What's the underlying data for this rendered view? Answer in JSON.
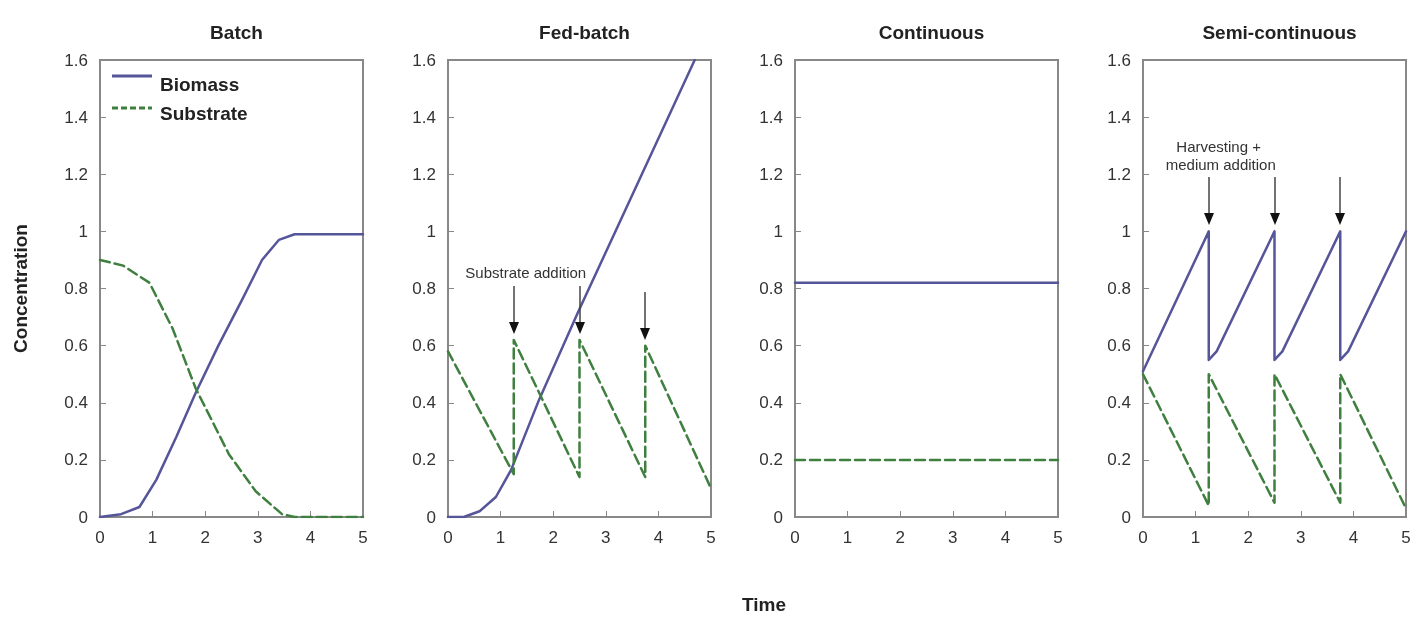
{
  "chart_data": [
    {
      "type": "line",
      "title": "Batch",
      "ylabel": "Concentration",
      "xlim": [
        0,
        5
      ],
      "ylim": [
        0,
        1.6
      ],
      "xticks": [
        0,
        1,
        2,
        3,
        4,
        5
      ],
      "yticks": [
        0,
        0.2,
        0.4,
        0.6,
        0.8,
        1,
        1.2,
        1.4,
        1.6
      ],
      "grid": false,
      "legend": "top left",
      "marker": "none",
      "series": [
        {
          "name": "Biomass",
          "color": "#55559a",
          "line_style": "solid",
          "x": [
            0,
            0.4,
            0.75,
            1.07,
            1.45,
            1.82,
            2.25,
            2.7,
            3.08,
            3.4,
            3.7,
            5
          ],
          "values": [
            0,
            0.01,
            0.035,
            0.13,
            0.28,
            0.435,
            0.6,
            0.76,
            0.9,
            0.97,
            0.99,
            0.99
          ]
        },
        {
          "name": "Substrate",
          "color": "#3f7f3f",
          "line_style": "dashed",
          "x": [
            0,
            0.44,
            0.94,
            1.38,
            1.82,
            2.45,
            2.96,
            3.46,
            3.7,
            5
          ],
          "values": [
            0.9,
            0.88,
            0.82,
            0.66,
            0.45,
            0.22,
            0.09,
            0.01,
            0,
            0
          ]
        }
      ]
    },
    {
      "type": "line",
      "title": "Fed-batch",
      "xlabel": "Time",
      "xlim": [
        0,
        5
      ],
      "ylim": [
        0,
        1.6
      ],
      "xticks": [
        0,
        1,
        2,
        3,
        4,
        5
      ],
      "yticks": [
        0,
        0.2,
        0.4,
        0.6,
        0.8,
        1,
        1.2,
        1.4,
        1.6
      ],
      "grid": false,
      "legend": false,
      "marker": "none",
      "annotations": [
        "Substrate addition"
      ],
      "series": [
        {
          "color": "#55559a",
          "line_style": "solid",
          "x": [
            0,
            0.3,
            0.6,
            0.91,
            1.2,
            1.73,
            2.48,
            4.69
          ],
          "values": [
            0,
            0,
            0.02,
            0.07,
            0.165,
            0.41,
            0.72,
            1.6
          ]
        },
        {
          "color": "#3f7f3f",
          "line_style": "dashed",
          "x": [
            0,
            1.25,
            1.25,
            2.5,
            2.5,
            3.75,
            3.75,
            5
          ],
          "values": [
            0.58,
            0.15,
            0.62,
            0.14,
            0.62,
            0.14,
            0.6,
            0.1
          ]
        }
      ]
    },
    {
      "type": "line",
      "title": "Continuous",
      "xlim": [
        0,
        5
      ],
      "ylim": [
        0,
        1.6
      ],
      "xticks": [
        0,
        1,
        2,
        3,
        4,
        5
      ],
      "yticks": [
        0,
        0.2,
        0.4,
        0.6,
        0.8,
        1,
        1.2,
        1.4,
        1.6
      ],
      "grid": false,
      "legend": false,
      "marker": "none",
      "series": [
        {
          "color": "#55559a",
          "line_style": "solid",
          "x": [
            0,
            5
          ],
          "values": [
            0.82,
            0.82
          ]
        },
        {
          "color": "#3f7f3f",
          "line_style": "dashed",
          "x": [
            0,
            5
          ],
          "values": [
            0.2,
            0.2
          ]
        }
      ]
    },
    {
      "type": "line",
      "title": "Semi-continuous",
      "xlim": [
        0,
        5
      ],
      "ylim": [
        0,
        1.6
      ],
      "xticks": [
        0,
        1,
        2,
        3,
        4,
        5
      ],
      "yticks": [
        0,
        0.2,
        0.4,
        0.6,
        0.8,
        1,
        1.2,
        1.4,
        1.6
      ],
      "grid": false,
      "legend": false,
      "marker": "none",
      "annotations": [
        "Harvesting + medium addition"
      ],
      "series": [
        {
          "color": "#55559a",
          "line_style": "solid",
          "x": [
            0,
            1.25,
            1.25,
            1.4,
            2.5,
            2.5,
            2.65,
            3.75,
            3.75,
            3.9,
            5
          ],
          "values": [
            0.51,
            1.0,
            0.55,
            0.58,
            1.0,
            0.55,
            0.58,
            1.0,
            0.55,
            0.58,
            1.0
          ]
        },
        {
          "color": "#3f7f3f",
          "line_style": "dashed",
          "x": [
            0,
            1.25,
            1.25,
            2.5,
            2.5,
            3.75,
            3.75,
            5
          ],
          "values": [
            0.5,
            0.04,
            0.5,
            0.05,
            0.5,
            0.05,
            0.5,
            0.03
          ]
        }
      ]
    }
  ]
}
